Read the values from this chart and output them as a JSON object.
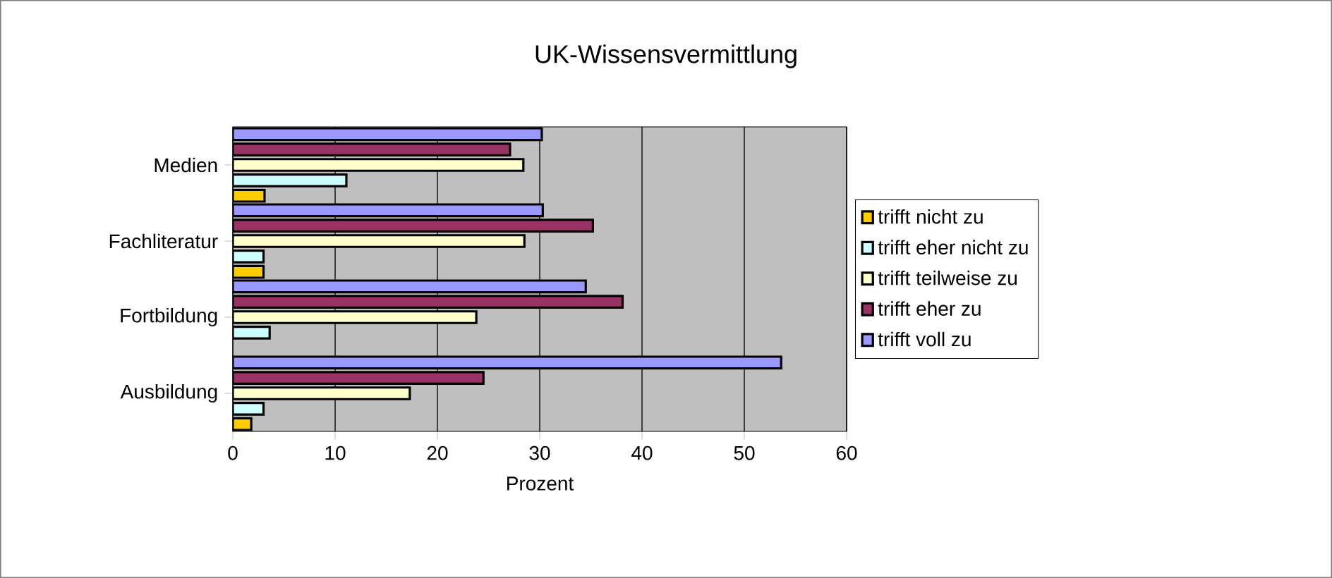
{
  "chart_data": {
    "type": "bar",
    "orientation": "horizontal",
    "title": "UK-Wissensvermittlung",
    "xlabel": "Prozent",
    "categories": [
      "Medien",
      "Fachliteratur",
      "Fortbildung",
      "Ausbildung"
    ],
    "series": [
      {
        "name": "trifft nicht zu",
        "color": "#ffcc00",
        "values": [
          3.1,
          3.0,
          null,
          1.8
        ]
      },
      {
        "name": "trifft eher nicht zu",
        "color": "#ccffff",
        "values": [
          11.1,
          3.0,
          3.6,
          3.0
        ]
      },
      {
        "name": "trifft teilweise zu",
        "color": "#ffffcc",
        "values": [
          28.4,
          28.5,
          23.8,
          17.3
        ]
      },
      {
        "name": "trifft eher zu",
        "color": "#993366",
        "values": [
          27.1,
          35.2,
          38.1,
          24.5
        ]
      },
      {
        "name": "trifft voll zu",
        "color": "#9999ff",
        "values": [
          30.2,
          30.3,
          34.5,
          53.6
        ]
      }
    ],
    "xlim": [
      0,
      60
    ],
    "xticks": [
      0,
      10,
      20,
      30,
      40,
      50,
      60
    ],
    "grid": "x",
    "legend": "right"
  }
}
